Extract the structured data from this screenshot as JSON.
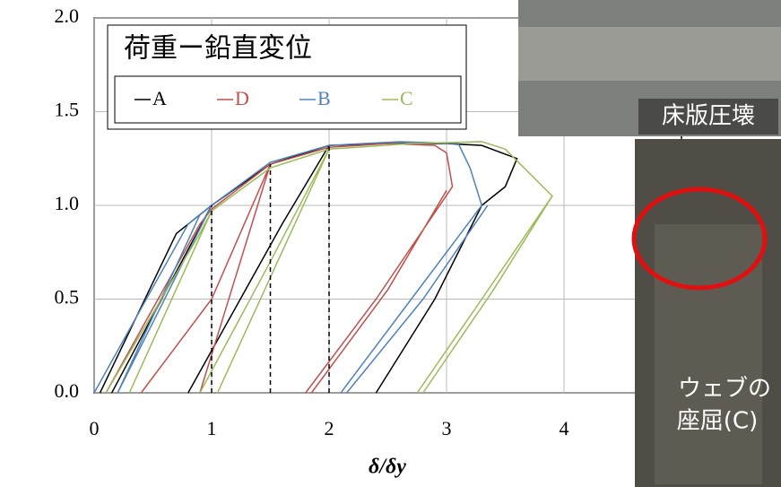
{
  "chart_data": {
    "type": "line",
    "title": "荷重ー鉛直変位",
    "x_label": "δ/δy",
    "xlim": [
      0,
      5
    ],
    "xticks": [
      0,
      1,
      2,
      3,
      4
    ],
    "ylim": [
      0,
      2
    ],
    "yticks": [
      {
        "value": 0,
        "label": "0.0"
      },
      {
        "value": 0.5,
        "label": "0.5"
      },
      {
        "value": 1,
        "label": "1.0"
      },
      {
        "value": 1.5,
        "label": "1.5"
      },
      {
        "value": 2,
        "label": "2.0"
      }
    ],
    "grid": true,
    "guides": {
      "x": [
        1,
        1.5,
        2
      ],
      "y": [
        1.0,
        1.22,
        1.32
      ]
    },
    "series": [
      {
        "name": "A",
        "color": "#000000",
        "x": [
          0.05,
          0.7,
          1.0,
          1.5,
          2.0,
          2.5,
          3.0,
          3.3,
          3.6,
          3.5,
          3.3,
          2.9,
          2.4,
          null,
          0.8,
          1.2,
          1.6,
          2.0,
          null,
          1.0,
          0.15
        ],
        "values": [
          0,
          0.85,
          1.0,
          1.22,
          1.32,
          1.33,
          1.33,
          1.32,
          1.25,
          1.1,
          1.0,
          0.5,
          0,
          null,
          0,
          0.45,
          0.9,
          1.32,
          null,
          1.0,
          0
        ]
      },
      {
        "name": "D",
        "color": "#c0504d",
        "x": [
          0.1,
          0.9,
          1.0,
          1.5,
          2.0,
          2.5,
          2.9,
          3.0,
          3.05,
          2.4,
          1.8,
          null,
          1.85,
          2.5,
          3.0,
          null,
          0.4,
          1.0,
          1.5,
          null,
          1.5,
          0.9
        ],
        "values": [
          0,
          0.9,
          0.98,
          1.22,
          1.31,
          1.33,
          1.32,
          1.28,
          1.1,
          0.5,
          0,
          null,
          0,
          0.55,
          1.08,
          null,
          0,
          0.5,
          1.22,
          null,
          1.22,
          0
        ]
      },
      {
        "name": "B",
        "color": "#4f81bd",
        "x": [
          0.0,
          0.8,
          1.0,
          1.5,
          2.0,
          2.6,
          3.1,
          3.2,
          3.3,
          2.7,
          2.1,
          null,
          2.15,
          2.8,
          3.35,
          null,
          1.0,
          0.2,
          null,
          0.2,
          0.9
        ],
        "values": [
          0,
          0.9,
          1.0,
          1.23,
          1.32,
          1.34,
          1.33,
          1.2,
          1.0,
          0.5,
          0,
          null,
          0,
          0.5,
          1.0,
          null,
          1.0,
          0,
          null,
          0,
          0.95
        ]
      },
      {
        "name": "C",
        "color": "#9bbb59",
        "x": [
          0.1,
          0.9,
          1.0,
          1.5,
          2.0,
          2.7,
          3.3,
          3.5,
          3.9,
          3.3,
          2.75,
          null,
          2.8,
          3.4,
          3.9,
          null,
          0.3,
          1.0,
          null,
          0.9,
          1.5,
          2.0,
          null,
          2.0,
          1.05
        ],
        "values": [
          0,
          0.85,
          0.97,
          1.2,
          1.3,
          1.33,
          1.34,
          1.3,
          1.05,
          0.5,
          0,
          null,
          0,
          0.55,
          1.05,
          null,
          0,
          0.97,
          null,
          0,
          0.7,
          1.3,
          null,
          1.3,
          0
        ]
      }
    ],
    "annotations": [
      "床版圧壊",
      "ウェブの",
      "座屈(C)"
    ]
  }
}
